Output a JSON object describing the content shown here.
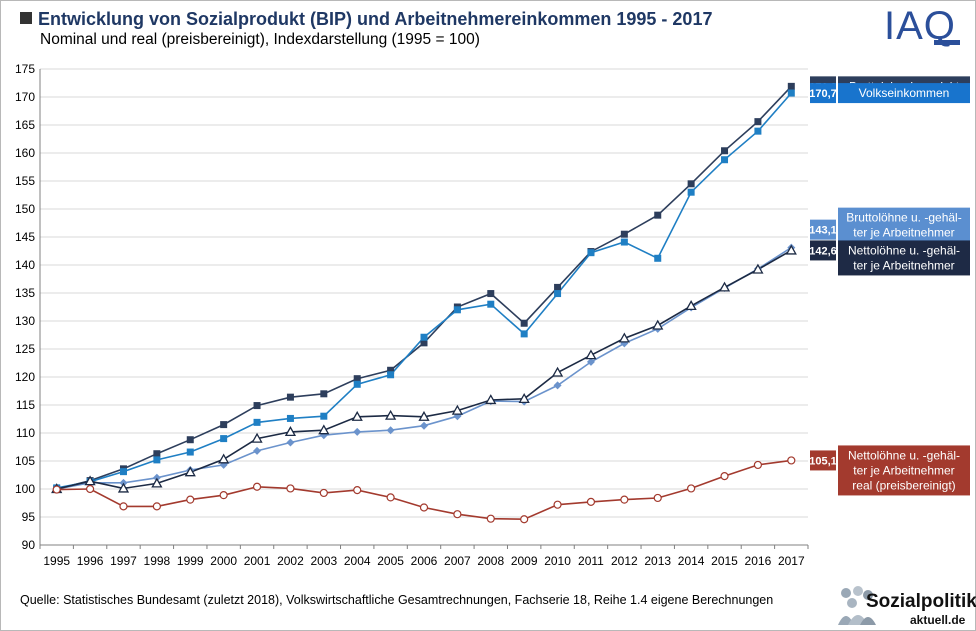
{
  "header": {
    "title": "Entwicklung von Sozialprodukt (BIP) und Arbeitnehmereinkommen 1995 - 2017",
    "subtitle": "Nominal und real (preisbereinigt), Indexdarstellung (1995 = 100)"
  },
  "branding": {
    "iaq_logo": "IAQ",
    "sozialpolitik_line1": "Sozialpolitik",
    "sozialpolitik_line2": "aktuell.de"
  },
  "source": "Quelle: Statistisches Bundesamt (zuletzt 2018), Volkswirtschaftliche Gesamtrechnungen, Fachserie 18, Reihe 1.4 eigene Berechnungen",
  "chart_data": {
    "type": "line",
    "categories": [
      "1995",
      "1996",
      "1997",
      "1998",
      "1999",
      "2000",
      "2001",
      "2002",
      "2003",
      "2004",
      "2005",
      "2006",
      "2007",
      "2008",
      "2009",
      "2010",
      "2011",
      "2012",
      "2013",
      "2014",
      "2015",
      "2016",
      "2017"
    ],
    "ylim": [
      90,
      175
    ],
    "yticks": [
      90,
      95,
      100,
      105,
      110,
      115,
      120,
      125,
      130,
      135,
      140,
      145,
      150,
      155,
      160,
      165,
      170,
      175
    ],
    "grid": true,
    "legend": "end-of-line labels on the right",
    "series": [
      {
        "name": "Bruttoinlandsprodukt",
        "end_label": "171,9",
        "label_lines": [
          "Bruttoinlandsprodukt"
        ],
        "color": "#2d3e5c",
        "box_color": "#2d3e5c",
        "marker": "square",
        "values": [
          100.0,
          101.5,
          103.6,
          106.3,
          108.8,
          111.5,
          114.9,
          116.4,
          117.0,
          119.7,
          121.2,
          126.1,
          132.5,
          134.9,
          129.6,
          136.0,
          142.4,
          145.5,
          148.9,
          154.5,
          160.4,
          165.6,
          171.9
        ]
      },
      {
        "name": "Volkseinkommen",
        "end_label": "170,7",
        "label_lines": [
          "Volkseinkommen"
        ],
        "color": "#1f7fc4",
        "box_color": "#1874cd",
        "marker": "square",
        "values": [
          100.2,
          101.3,
          103.1,
          105.2,
          106.6,
          109.0,
          111.9,
          112.6,
          113.0,
          118.7,
          120.4,
          127.1,
          132.0,
          133.0,
          127.7,
          134.9,
          142.2,
          144.1,
          141.2,
          153.0,
          158.8,
          163.9,
          170.7
        ]
      },
      {
        "name": "Bruttolöhne u. -gehälter je Arbeitnehmer",
        "end_label": "143,1",
        "label_lines": [
          "Bruttolöhne u. -gehäl-",
          "ter je Arbeitnehmer"
        ],
        "color": "#6b93cc",
        "box_color": "#5b8fd0",
        "marker": "diamond",
        "values": [
          100.0,
          101.1,
          101.1,
          102.0,
          103.4,
          104.3,
          106.8,
          108.3,
          109.6,
          110.2,
          110.5,
          111.3,
          113.0,
          115.7,
          115.6,
          118.5,
          122.7,
          126.0,
          128.6,
          132.4,
          135.9,
          139.3,
          143.1
        ]
      },
      {
        "name": "Nettolöhne u. -gehälter je Arbeitnehmer",
        "end_label": "142,6",
        "label_lines": [
          "Nettolöhne u. -gehäl-",
          "ter je Arbeitnehmer"
        ],
        "color": "#1c2a44",
        "box_color": "#1e2a45",
        "marker": "triangle",
        "values": [
          100.0,
          101.4,
          100.1,
          101.0,
          103.0,
          105.3,
          109.0,
          110.2,
          110.5,
          112.9,
          113.1,
          112.9,
          114.0,
          115.9,
          116.1,
          120.8,
          123.9,
          126.9,
          129.2,
          132.7,
          136.0,
          139.2,
          142.6
        ]
      },
      {
        "name": "Nettolöhne u. -gehälter je Arbeitnehmer real (preisbereinigt)",
        "end_label": "105,1",
        "label_lines": [
          "Nettolöhne u. -gehäl-",
          "ter je Arbeitnehmer",
          "real (preisbereinigt)"
        ],
        "color": "#a33a2e",
        "box_color": "#a33a2e",
        "marker": "circle",
        "values": [
          99.9,
          100.0,
          96.9,
          96.9,
          98.1,
          98.9,
          100.4,
          100.1,
          99.3,
          99.8,
          98.5,
          96.7,
          95.5,
          94.7,
          94.6,
          97.2,
          97.7,
          98.1,
          98.4,
          100.1,
          102.3,
          104.3,
          105.1
        ]
      }
    ]
  }
}
